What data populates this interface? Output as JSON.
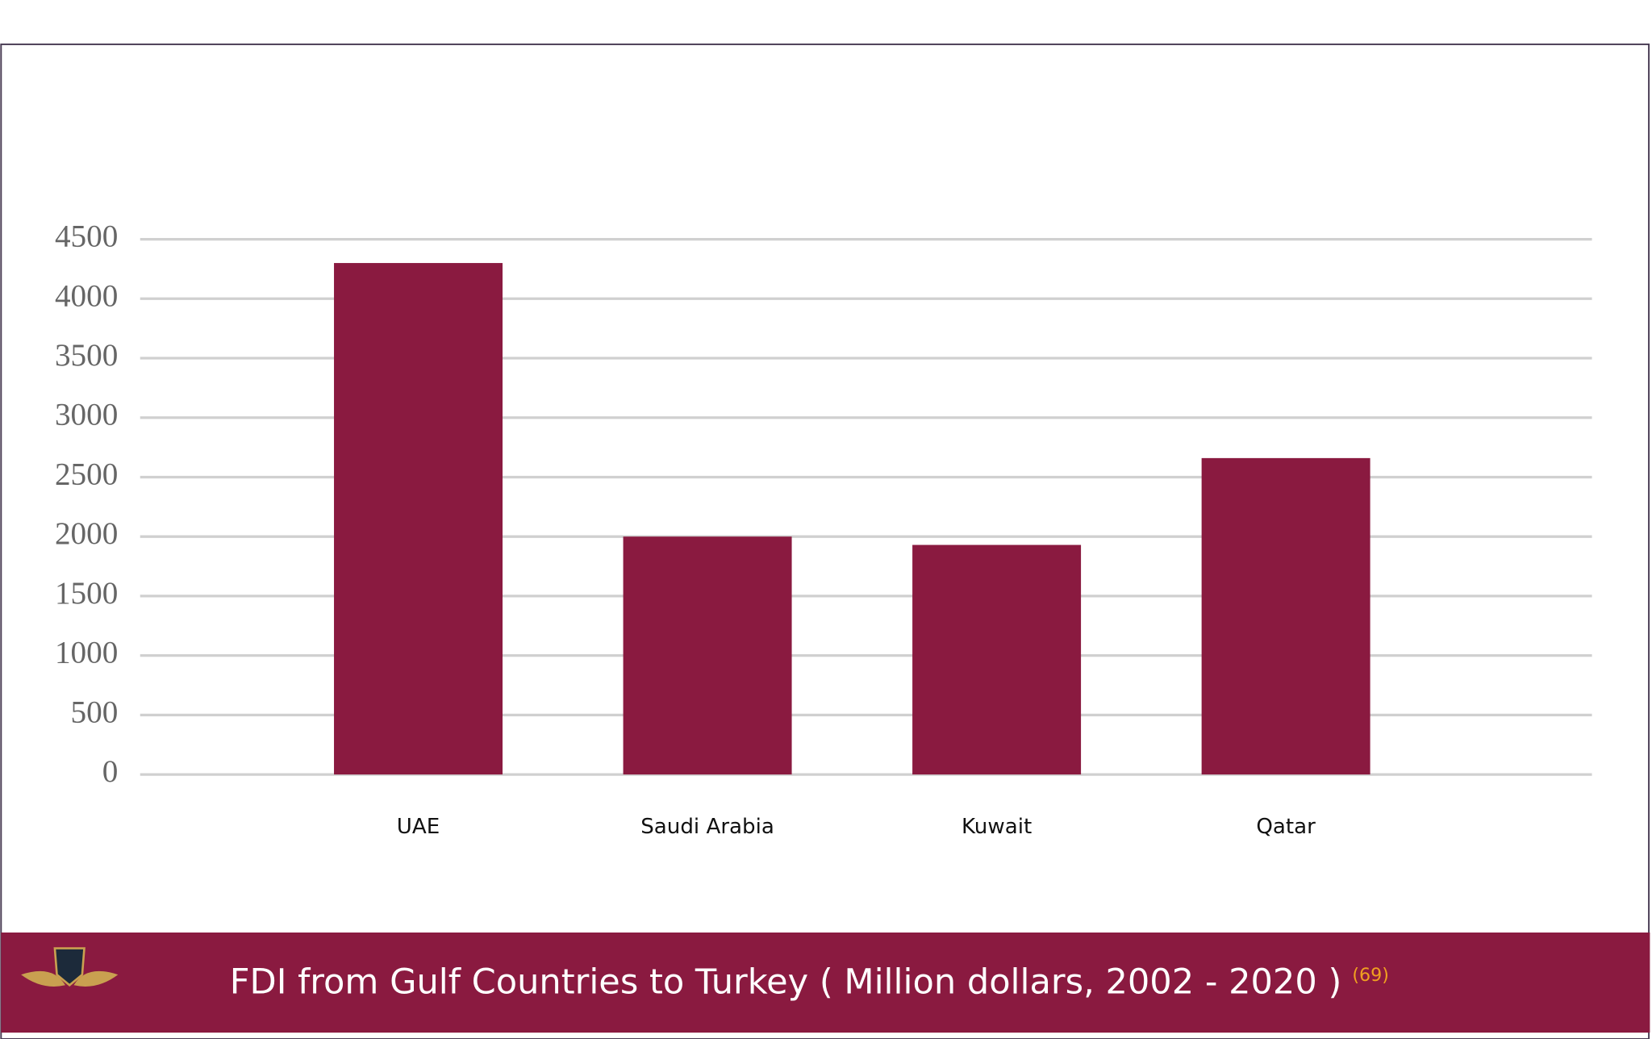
{
  "chart_data": {
    "type": "bar",
    "title": "FDI from Gulf Countries to Turkey ( Million dollars, 2002 - 2020 )",
    "footnote": "(69)",
    "categories": [
      "UAE",
      "Saudi Arabia",
      "Kuwait",
      "Qatar"
    ],
    "values": [
      4300,
      2000,
      1930,
      2660
    ],
    "color": "#8a1a40",
    "ylim": [
      0,
      4500
    ],
    "yticks": [
      0,
      500,
      1000,
      1500,
      2000,
      2500,
      3000,
      3500,
      4000,
      4500
    ],
    "grid": true
  }
}
